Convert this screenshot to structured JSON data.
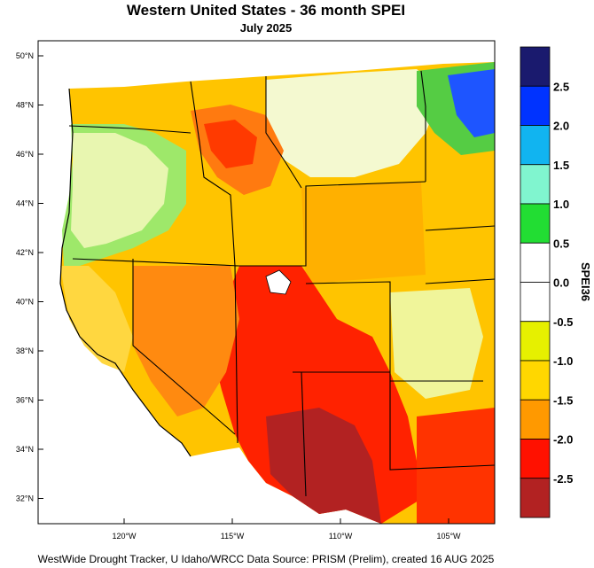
{
  "title": "Western United States - 36 month SPEI",
  "subtitle": "July 2025",
  "credit": "WestWide Drought Tracker, U Idaho/WRCC Data Source: PRISM (Prelim), created 16 AUG 2025",
  "colorbar": {
    "title": "SPEI36",
    "bins": [
      {
        "color": "#1a1a6e"
      },
      {
        "color": "#0033ff"
      },
      {
        "color": "#11b4f0"
      },
      {
        "color": "#80f5cf"
      },
      {
        "color": "#22dd33"
      },
      {
        "color": "#ffffff"
      },
      {
        "color": "#ffffff"
      },
      {
        "color": "#e6f000"
      },
      {
        "color": "#ffd700"
      },
      {
        "color": "#ff9900"
      },
      {
        "color": "#ff1100"
      },
      {
        "color": "#b22222"
      }
    ],
    "labels": [
      "2.5",
      "2.0",
      "1.5",
      "1.0",
      "0.5",
      "0.0",
      "-0.5",
      "-1.0",
      "-1.5",
      "-2.0",
      "-2.5"
    ]
  },
  "latitudes": [
    "50°N",
    "48°N",
    "46°N",
    "44°N",
    "42°N",
    "40°N",
    "38°N",
    "36°N",
    "34°N",
    "32°N"
  ],
  "longitudes": [
    "120°W",
    "115°W",
    "110°W",
    "105°W"
  ]
}
